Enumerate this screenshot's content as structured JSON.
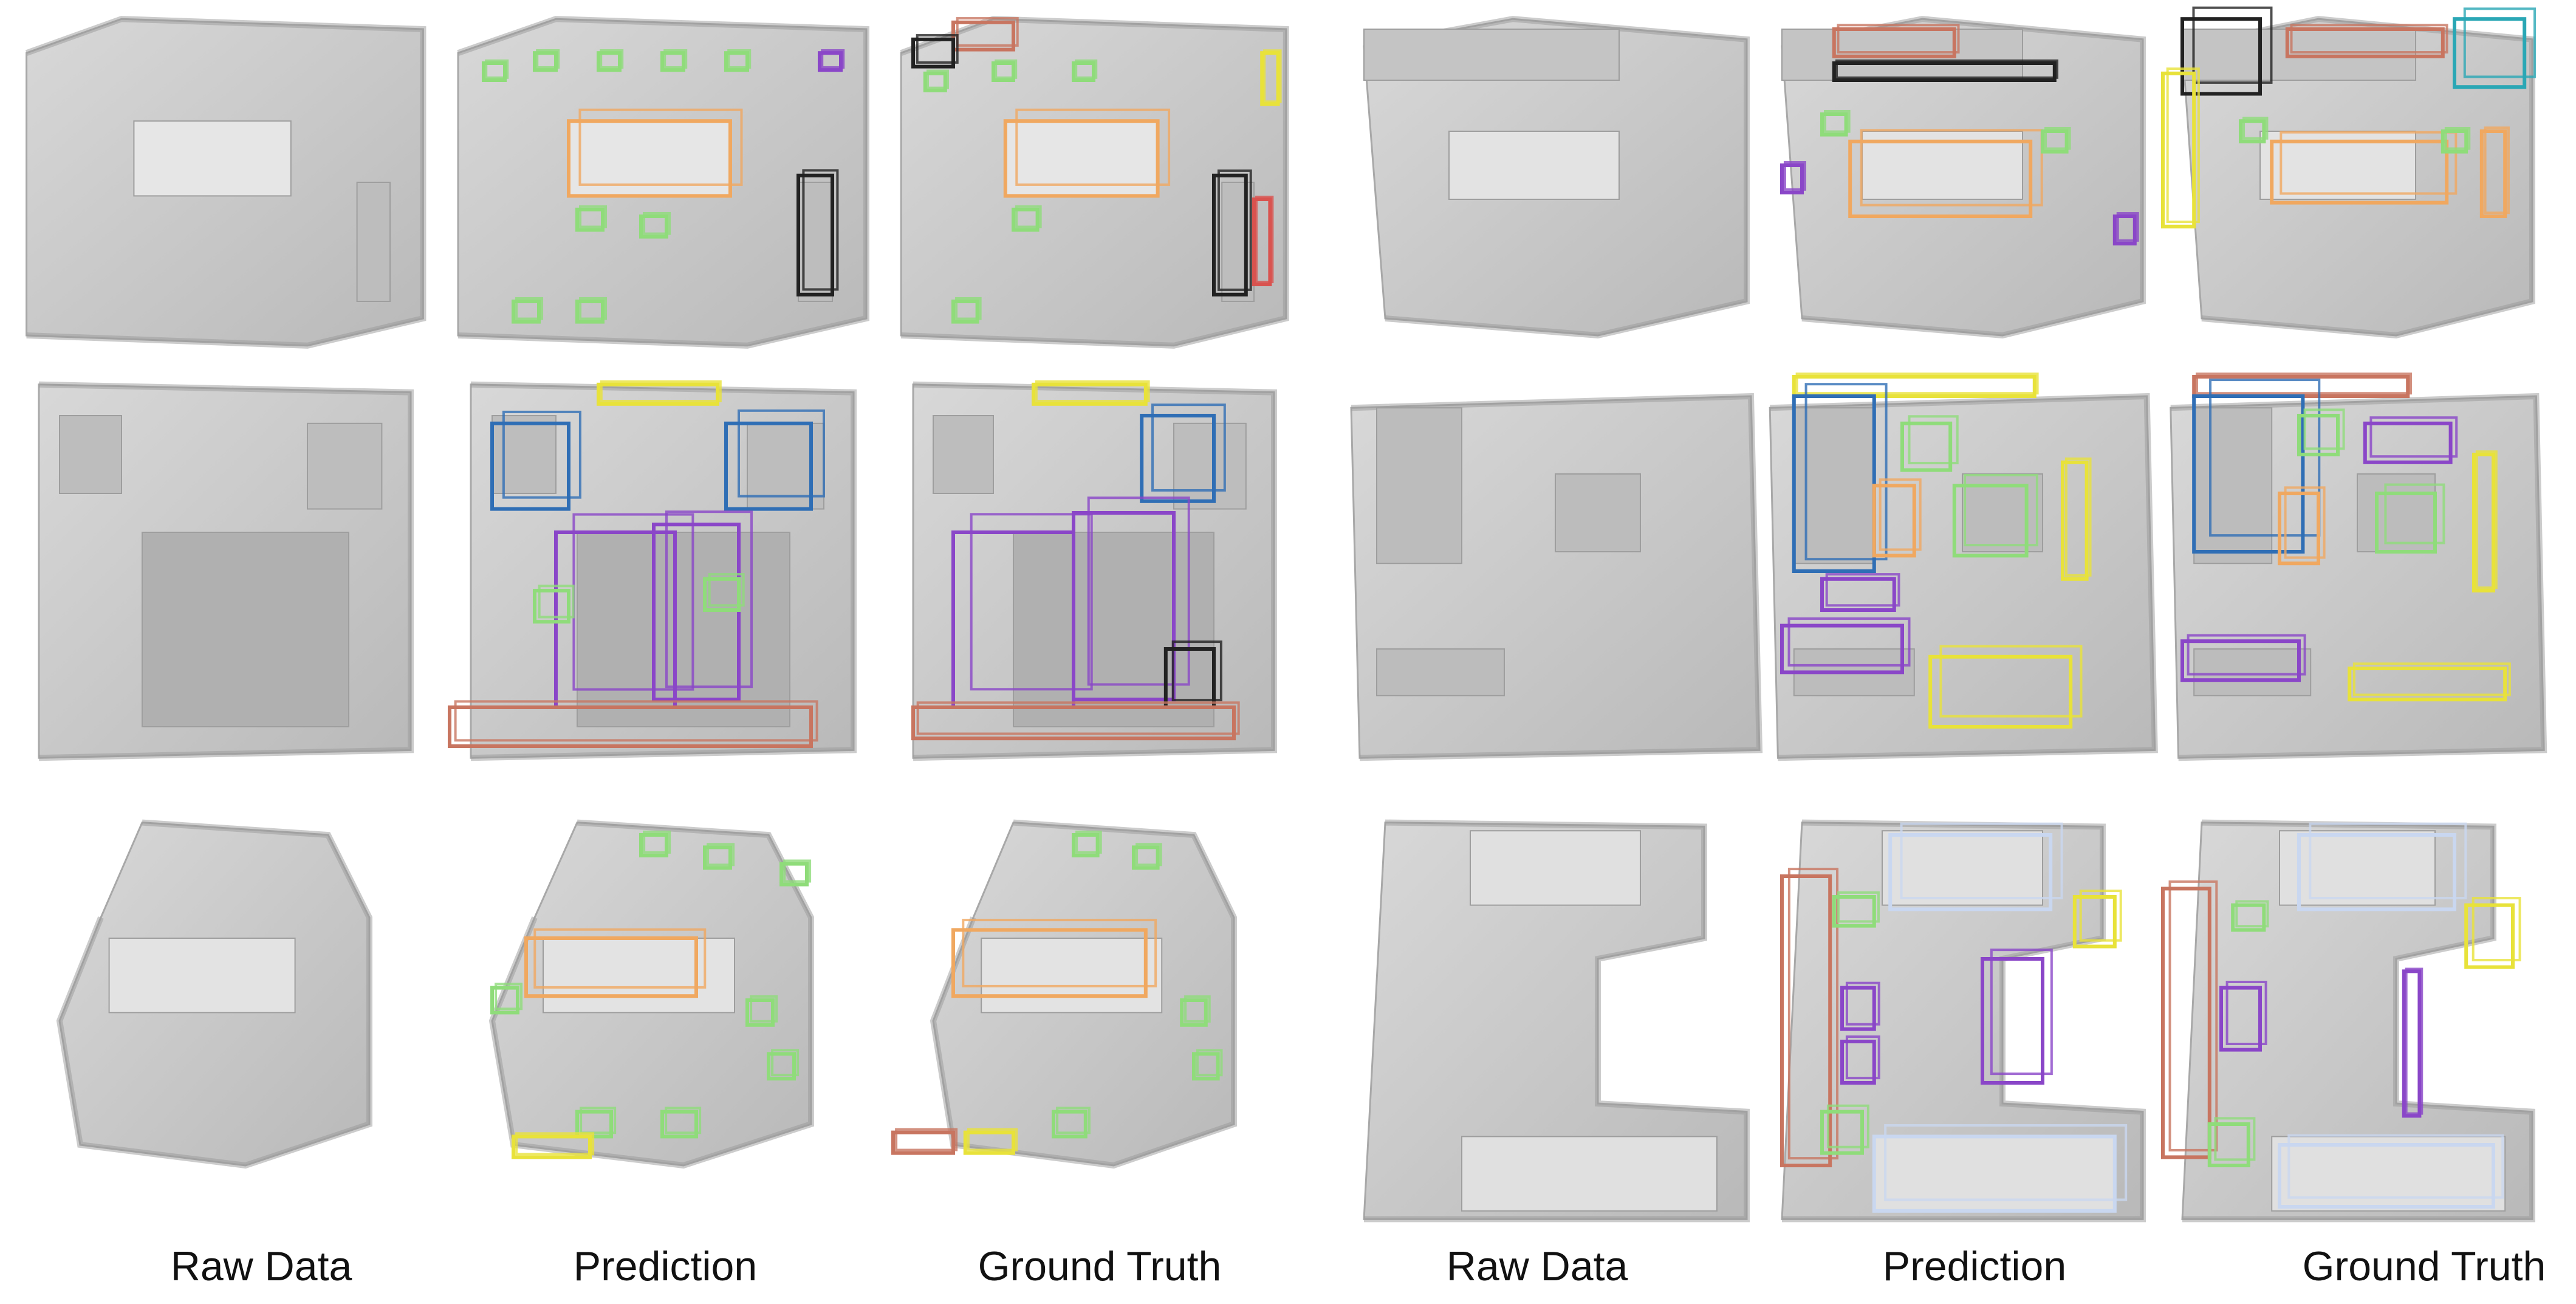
{
  "figure": {
    "captions": [
      "Raw Data",
      "Prediction",
      "Ground Truth",
      "Raw Data",
      "Prediction",
      "Ground Truth"
    ],
    "box_colors": {
      "chair": "#8fdc7a",
      "table": "#f0a860",
      "cabinet": "#222222",
      "sofa": "#2f6eb5",
      "bed": "#8a46c8",
      "window": "#e8e23a",
      "bookshelf": "#c87560",
      "counter": "#c9d7f0",
      "shelf": "#2aa7b5",
      "door": "#d9534f"
    },
    "scene_gray": "#cfcfcf"
  }
}
